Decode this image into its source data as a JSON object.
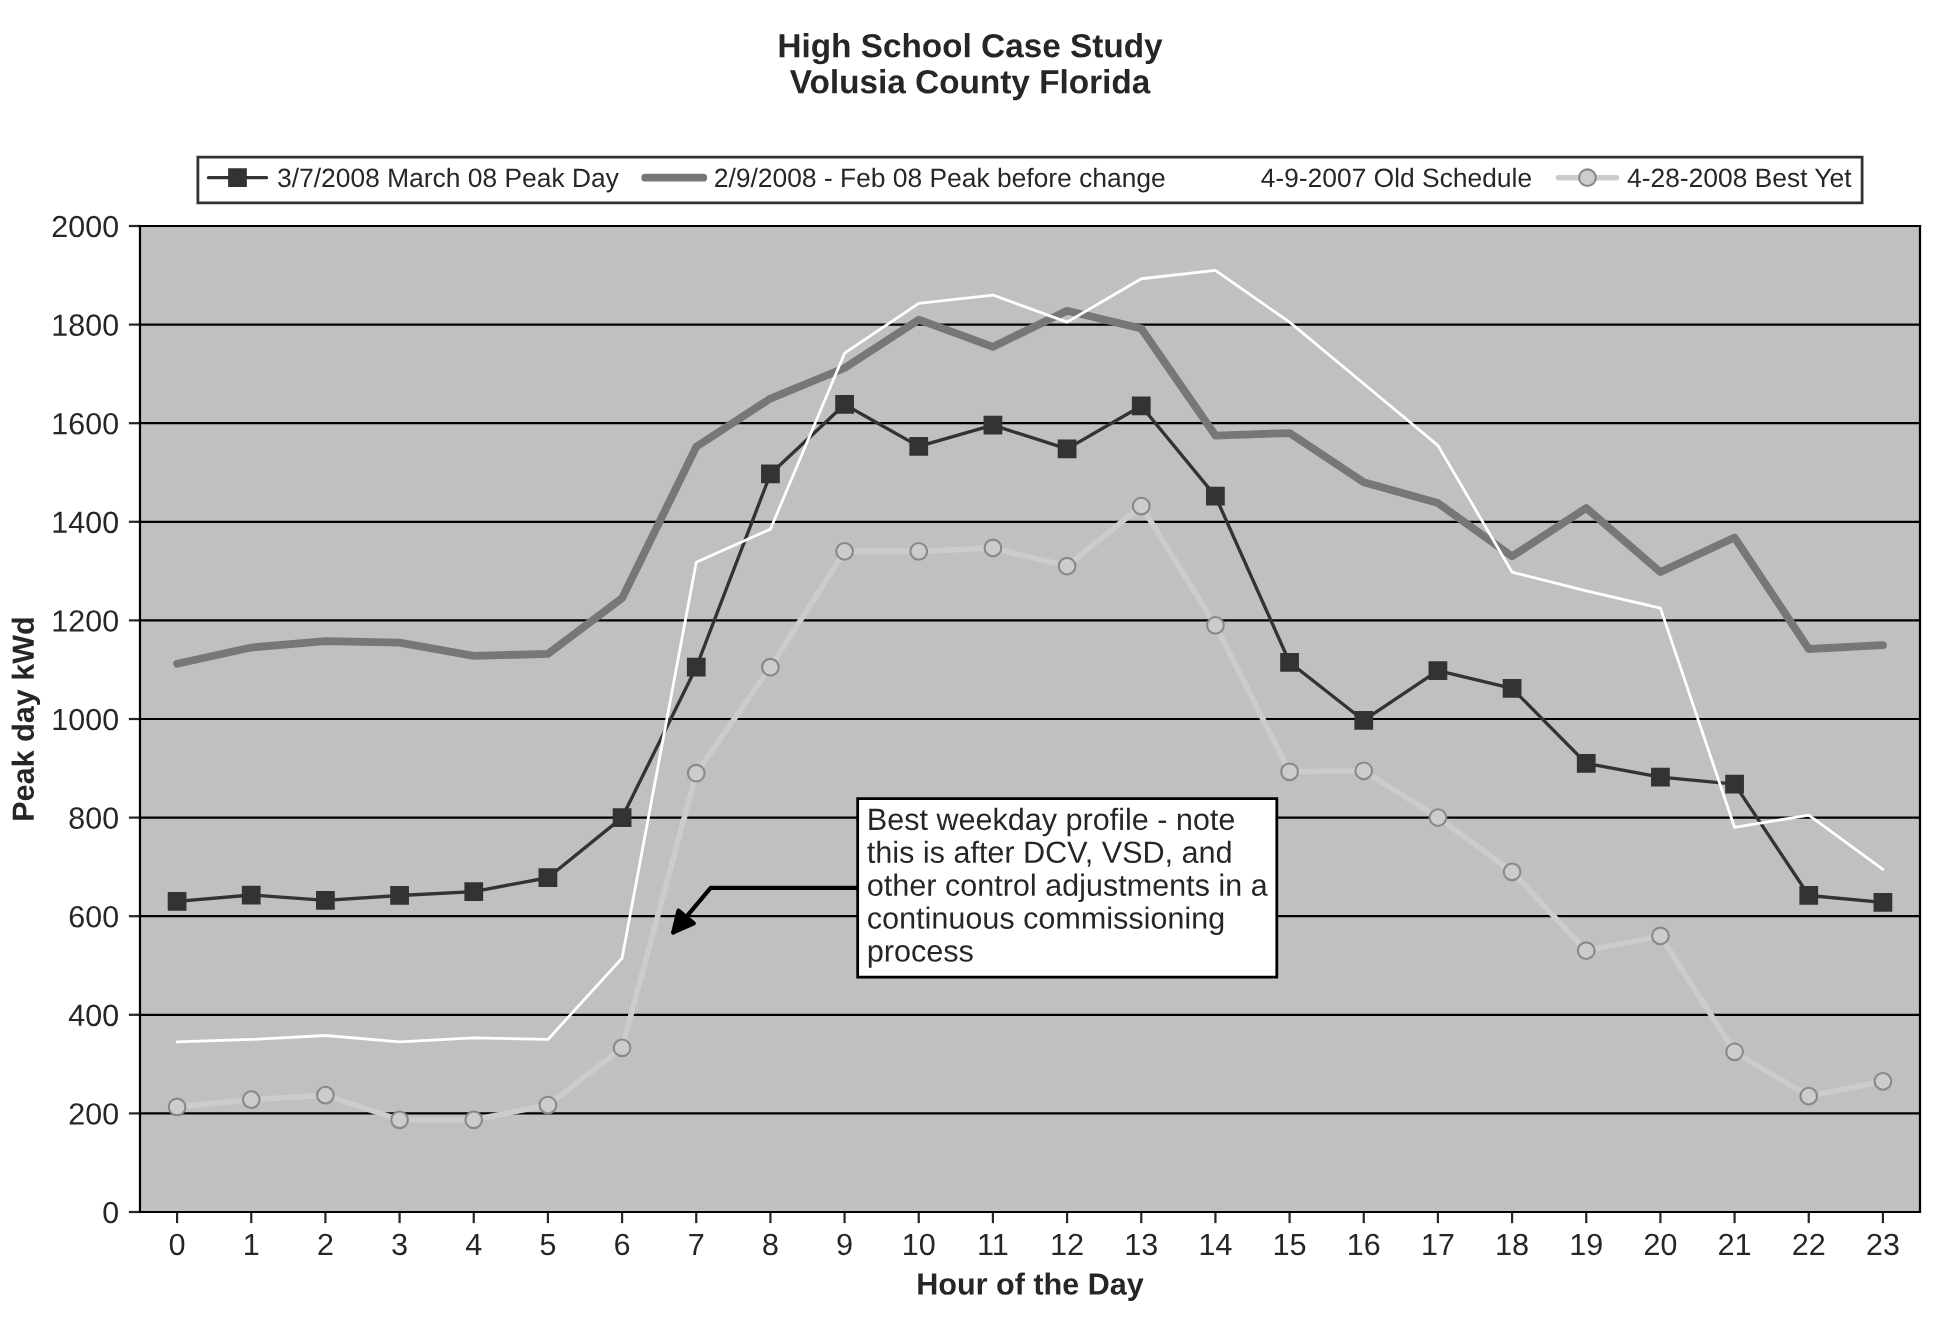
{
  "chart_data": {
    "type": "line",
    "title": "High School Case Study\nVolusia County Florida",
    "xlabel": "Hour of the Day",
    "ylabel": "Peak day kWd",
    "categories": [
      "0",
      "1",
      "2",
      "3",
      "4",
      "5",
      "6",
      "7",
      "8",
      "9",
      "10",
      "11",
      "12",
      "13",
      "14",
      "15",
      "16",
      "17",
      "18",
      "19",
      "20",
      "21",
      "22",
      "23"
    ],
    "series": [
      {
        "name": "3/7/2008 March 08 Peak Day",
        "color": "#333333",
        "marker": "square",
        "values": [
          630,
          643,
          632,
          642,
          650,
          678,
          800,
          1105,
          1497,
          1638,
          1553,
          1596,
          1548,
          1635,
          1452,
          1115,
          997,
          1098,
          1062,
          910,
          882,
          868,
          642,
          628
        ]
      },
      {
        "name": "2/9/2008 - Feb 08 Peak before change",
        "color": "#777777",
        "marker": "none",
        "values": [
          1112,
          1145,
          1158,
          1155,
          1128,
          1132,
          1245,
          1552,
          1650,
          1712,
          1810,
          1755,
          1828,
          1792,
          1575,
          1580,
          1480,
          1438,
          1330,
          1428,
          1298,
          1368,
          1142,
          1150
        ]
      },
      {
        "name": "4-9-2007 Old Schedule",
        "color": "#ffffff",
        "marker": "none",
        "values": [
          345,
          350,
          358,
          345,
          353,
          350,
          515,
          1318,
          1385,
          1742,
          1843,
          1860,
          1805,
          1893,
          1910,
          1805,
          1680,
          1555,
          1298,
          1260,
          1225,
          780,
          805,
          695
        ]
      },
      {
        "name": "4-28-2008 Best Yet",
        "color": "#cccccc",
        "marker": "circle",
        "values": [
          213,
          228,
          237,
          187,
          187,
          217,
          333,
          890,
          1105,
          1340,
          1340,
          1347,
          1310,
          1432,
          1190,
          893,
          895,
          800,
          690,
          530,
          560,
          325,
          235,
          265
        ]
      }
    ],
    "ylim": [
      0,
      2000
    ],
    "yticks": [
      0,
      200,
      400,
      600,
      800,
      1000,
      1200,
      1400,
      1600,
      1800,
      2000
    ],
    "grid": "y",
    "legend": "top",
    "annotations": [
      "Best weekday profile - note\nthis is after DCV, VSD, and\nother control adjustments in a\ncontinuous commissioning\nprocess"
    ]
  }
}
